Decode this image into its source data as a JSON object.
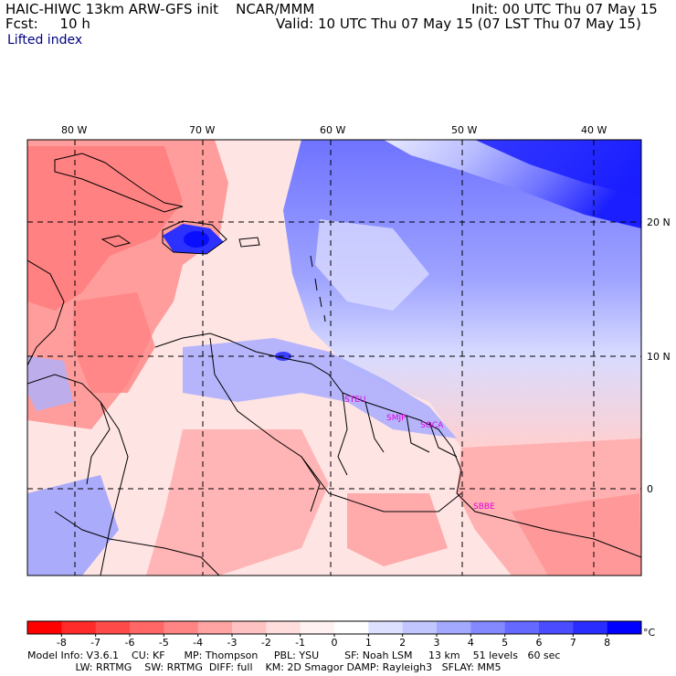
{
  "header": {
    "title": "HAIC-HIWC 13km ARW-GFS init    NCAR/MMM",
    "fcst": "Fcst:     10 h",
    "init": "Init: 00 UTC Thu 07 May 15",
    "valid": "Valid: 10 UTC Thu 07 May 15 (07 LST Thu 07 May 15)",
    "field": "Lifted index"
  },
  "map": {
    "lon_labels": [
      "80 W",
      "70 W",
      "60 W",
      "50 W",
      "40 W"
    ],
    "lat_labels": [
      "20 N",
      "10 N",
      "0"
    ],
    "stations": [
      "STEU",
      "SMJP",
      "SOCA",
      "SBBE"
    ]
  },
  "colorbar": {
    "ticks": [
      "-8",
      "-7",
      "-6",
      "-5",
      "-4",
      "-3",
      "-2",
      "-1",
      "0",
      "1",
      "2",
      "3",
      "4",
      "5",
      "6",
      "7",
      "8"
    ],
    "unit": "°C",
    "colors": [
      "#ff0000",
      "#ff2a2a",
      "#ff4a4a",
      "#ff6666",
      "#ff8585",
      "#ffa3a3",
      "#ffc2c2",
      "#ffdddd",
      "#fff1f1",
      "#ffffff",
      "#dde0ff",
      "#c2c6ff",
      "#a3a9ff",
      "#8589ff",
      "#6669ff",
      "#4a4dff",
      "#2a2dff",
      "#0000ff"
    ]
  },
  "footer": {
    "line1": "Model Info: V3.6.1    CU: KF      MP: Thompson     PBL: YSU        SF: Noah LSM     13 km    51 levels   60 sec",
    "line2": "               LW: RRTMG    SW: RRTMG  DIFF: full    KM: 2D Smagor DAMP: Rayleigh3   SFLAY: MM5"
  }
}
